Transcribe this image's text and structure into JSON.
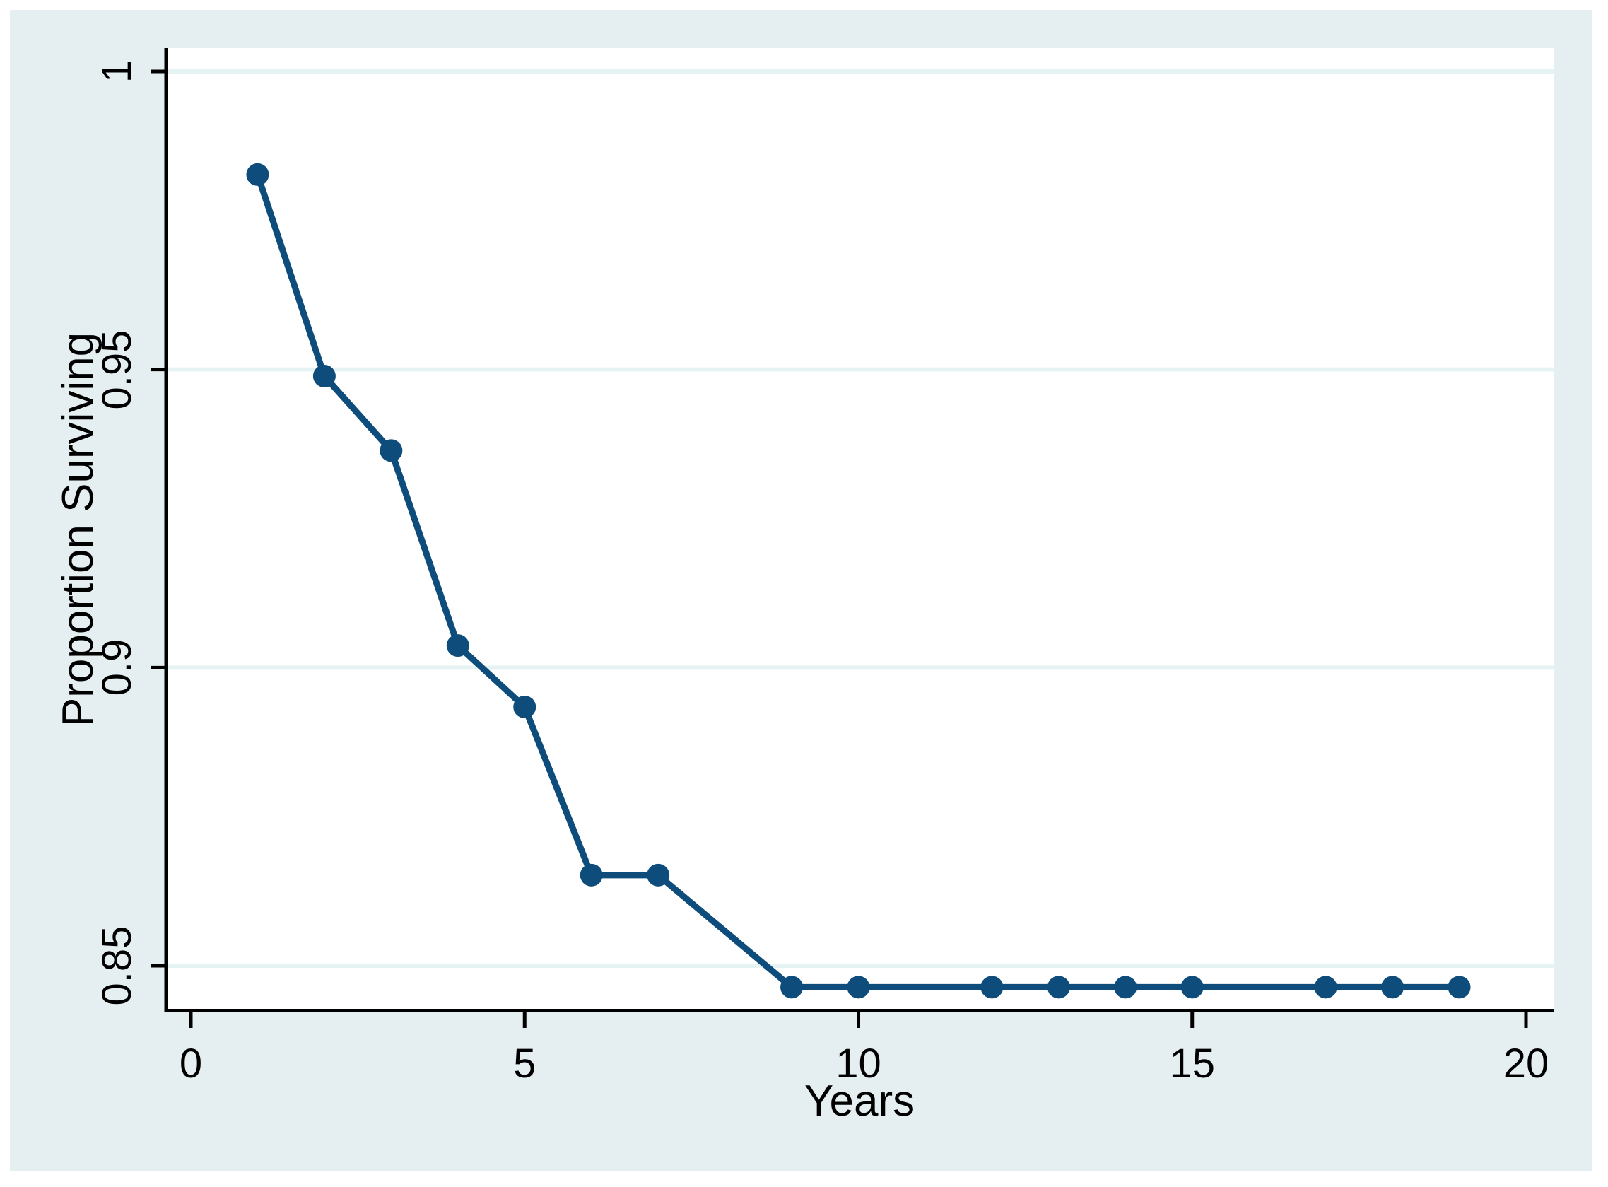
{
  "figure": {
    "background_color": "#e5eff1",
    "plot_background_color": "#ffffff",
    "grid_color": "#e6f3f3",
    "axis_color": "#000000",
    "series_color": "#0e4d7b"
  },
  "chart_data": {
    "type": "line",
    "title": "",
    "xlabel": "Years",
    "ylabel": "Proportion Surviving",
    "x_ticks": [
      0,
      5,
      10,
      15,
      20
    ],
    "x_tick_labels": [
      "0",
      "5",
      "10",
      "15",
      "20"
    ],
    "y_ticks": [
      1,
      0.95,
      0.9,
      0.85
    ],
    "y_tick_labels": [
      "1",
      "0.95",
      "0.9",
      "0.85"
    ],
    "xlim": [
      -0.37,
      20.4
    ],
    "ylim": [
      0.8425,
      1.004
    ],
    "grid": "horizontal-only",
    "legend_position": "none",
    "series": [
      {
        "name": "Proportion Surviving",
        "marker": "circle",
        "x": [
          1,
          2,
          3,
          4,
          5,
          6,
          7,
          9,
          10,
          12,
          13,
          14,
          15,
          17,
          18,
          19
        ],
        "y": [
          0.9827,
          0.9489,
          0.9364,
          0.9037,
          0.8934,
          0.8652,
          0.8652,
          0.8464,
          0.8464,
          0.8464,
          0.8464,
          0.8464,
          0.8464,
          0.8464,
          0.8464,
          0.8464
        ]
      }
    ]
  }
}
